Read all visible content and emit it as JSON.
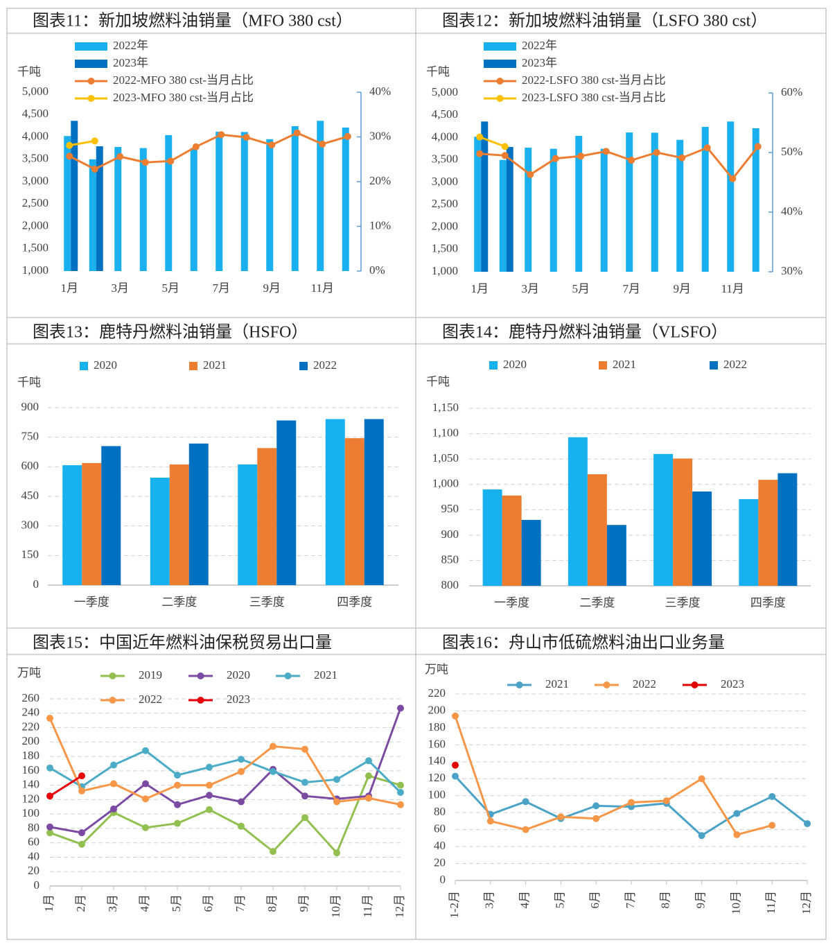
{
  "chart_data": [
    {
      "type": "combo",
      "title": "图表11：新加坡燃料油销量（MFO 380 cst）",
      "y_label": "千吨",
      "categories": [
        "1月",
        null,
        "3月",
        null,
        "5月",
        null,
        "7月",
        null,
        "9月",
        null,
        "11月",
        null
      ],
      "series": [
        {
          "name": "2022年",
          "color": "#1ab0ef",
          "values": [
            4020,
            3500,
            3775,
            3750,
            4040,
            3750,
            4115,
            4110,
            3950,
            4240,
            4360,
            4210
          ]
        },
        {
          "name": "2023年",
          "color": "#0070c0",
          "values": [
            4360,
            3790,
            null,
            null,
            null,
            null,
            null,
            null,
            null,
            null,
            null,
            null
          ]
        },
        {
          "name": "2022-MFO 380 cst-当月占比",
          "color": "#ed7d31",
          "axis": "y2",
          "values": [
            25.7,
            22.8,
            25.6,
            24.3,
            24.6,
            27.8,
            30.5,
            29.9,
            28.2,
            30.9,
            28.4,
            30.1
          ]
        },
        {
          "name": "2023-MFO 380 cst-当月占比",
          "color": "#ffc000",
          "axis": "y2",
          "values": [
            28.1,
            29.1,
            null,
            null,
            null,
            null,
            null,
            null,
            null,
            null,
            null,
            null
          ]
        }
      ],
      "ylim": [
        1000,
        5000
      ],
      "yticks": [
        {
          "value": 1000,
          "label": "1,000"
        },
        {
          "value": 1500,
          "label": "1,500"
        },
        {
          "value": 2000,
          "label": "2,000"
        },
        {
          "value": 2500,
          "label": "2,500"
        },
        {
          "value": 3000,
          "label": "3,000"
        },
        {
          "value": 3500,
          "label": "3,500"
        },
        {
          "value": 4000,
          "label": "4,000"
        },
        {
          "value": 4500,
          "label": "4,500"
        },
        {
          "value": 5000,
          "label": "5,000"
        }
      ],
      "y2lim": [
        0,
        40
      ],
      "y2ticks": [
        {
          "value": 0,
          "label": "0%"
        },
        {
          "value": 10,
          "label": "10%"
        },
        {
          "value": 20,
          "label": "20%"
        },
        {
          "value": 30,
          "label": "30%"
        },
        {
          "value": 40,
          "label": "40%"
        }
      ],
      "grid": false
    },
    {
      "type": "combo",
      "title": "图表12：新加坡燃料油销量（LSFO 380 cst）",
      "y_label": "千吨",
      "categories": [
        "1月",
        null,
        "3月",
        null,
        "5月",
        null,
        "7月",
        null,
        "9月",
        null,
        "11月",
        null
      ],
      "series": [
        {
          "name": "2022年",
          "color": "#1ab0ef",
          "values": [
            4020,
            3500,
            3775,
            3750,
            4040,
            3750,
            4115,
            4110,
            3950,
            4240,
            4360,
            4210
          ]
        },
        {
          "name": "2023年",
          "color": "#0070c0",
          "values": [
            4360,
            3790,
            null,
            null,
            null,
            null,
            null,
            null,
            null,
            null,
            null,
            null
          ]
        },
        {
          "name": "2022-LSFO 380 cst-当月占比",
          "color": "#ed7d31",
          "axis": "y2",
          "values": [
            49.8,
            49.5,
            46.3,
            49.0,
            49.4,
            50.2,
            48.7,
            50.0,
            49.1,
            50.8,
            45.6,
            51.0
          ]
        },
        {
          "name": "2023-LSFO 380 cst-当月占比",
          "color": "#ffc000",
          "axis": "y2",
          "values": [
            52.6,
            51.0,
            null,
            null,
            null,
            null,
            null,
            null,
            null,
            null,
            null,
            null
          ]
        }
      ],
      "ylim": [
        1000,
        5000
      ],
      "yticks": [
        {
          "value": 1000,
          "label": "1,000"
        },
        {
          "value": 1500,
          "label": "1,500"
        },
        {
          "value": 2000,
          "label": "2,000"
        },
        {
          "value": 2500,
          "label": "2,500"
        },
        {
          "value": 3000,
          "label": "3,000"
        },
        {
          "value": 3500,
          "label": "3,500"
        },
        {
          "value": 4000,
          "label": "4,000"
        },
        {
          "value": 4500,
          "label": "4,500"
        },
        {
          "value": 5000,
          "label": "5,000"
        }
      ],
      "y2lim": [
        30,
        60
      ],
      "y2ticks": [
        {
          "value": 30,
          "label": "30%"
        },
        {
          "value": 40,
          "label": "40%"
        },
        {
          "value": 50,
          "label": "50%"
        },
        {
          "value": 60,
          "label": "60%"
        }
      ],
      "grid": false
    },
    {
      "type": "bar",
      "title": "图表13：鹿特丹燃料油销量（HSFO）",
      "y_label": "千吨",
      "categories": [
        "一季度",
        "二季度",
        "三季度",
        "四季度"
      ],
      "series": [
        {
          "name": "2020",
          "color": "#17b1f0",
          "values": [
            608,
            545,
            612,
            842
          ]
        },
        {
          "name": "2021",
          "color": "#ed7d31",
          "values": [
            619,
            612,
            695,
            745
          ]
        },
        {
          "name": "2022",
          "color": "#0070c0",
          "values": [
            705,
            718,
            835,
            842
          ]
        }
      ],
      "ylim": [
        0,
        900
      ],
      "yticks": [
        0,
        150,
        300,
        450,
        600,
        750,
        900
      ],
      "grid": true
    },
    {
      "type": "bar",
      "title": "图表14：鹿特丹燃料油销量（VLSFO）",
      "y_label": "千吨",
      "categories": [
        "一季度",
        "二季度",
        "三季度",
        "四季度"
      ],
      "series": [
        {
          "name": "2020",
          "color": "#17b1f0",
          "values": [
            990,
            1093,
            1060,
            971
          ]
        },
        {
          "name": "2021",
          "color": "#ed7d31",
          "values": [
            978,
            1020,
            1051,
            1009
          ]
        },
        {
          "name": "2022",
          "color": "#0070c0",
          "values": [
            930,
            920,
            986,
            1022
          ]
        }
      ],
      "ylim": [
        800,
        1150
      ],
      "yticks": [
        800,
        850,
        900,
        950,
        {
          "value": 1000,
          "label": "1,000"
        },
        {
          "value": 1050,
          "label": "1,050"
        },
        {
          "value": 1100,
          "label": "1,100"
        },
        {
          "value": 1150,
          "label": "1,150"
        }
      ],
      "grid": true
    },
    {
      "type": "line",
      "title": "图表15：中国近年燃料油保税贸易出口量",
      "y_label": "万吨",
      "categories": [
        "1月",
        "2月",
        "3月",
        "4月",
        "5月",
        "6月",
        "7月",
        "8月",
        "9月",
        "10月",
        "11月",
        "12月"
      ],
      "series": [
        {
          "name": "2019",
          "color": "#92c050",
          "values": [
            74,
            58,
            102,
            81,
            87,
            106,
            83,
            48,
            95,
            46,
            153,
            140
          ]
        },
        {
          "name": "2020",
          "color": "#7b4aa3",
          "values": [
            82,
            74,
            107,
            142,
            113,
            126,
            117,
            162,
            125,
            121,
            125,
            247
          ]
        },
        {
          "name": "2021",
          "color": "#4aacc6",
          "values": [
            164,
            138,
            168,
            188,
            154,
            165,
            176,
            159,
            144,
            148,
            174,
            130
          ]
        },
        {
          "name": "2022",
          "color": "#f79646",
          "values": [
            233,
            132,
            142,
            121,
            140,
            140,
            159,
            194,
            190,
            117,
            122,
            113
          ]
        },
        {
          "name": "2023",
          "color": "#e8000b",
          "values": [
            125,
            153,
            null,
            null,
            null,
            null,
            null,
            null,
            null,
            null,
            null,
            null
          ]
        }
      ],
      "ylim": [
        0,
        260
      ],
      "yticks": [
        0,
        20,
        40,
        60,
        80,
        100,
        120,
        140,
        160,
        180,
        200,
        220,
        240,
        260
      ],
      "grid": true
    },
    {
      "type": "line",
      "title": "图表16：舟山市低硫燃料油出口业务量",
      "y_label": "万吨",
      "categories": [
        "1-2月",
        "3月",
        "4月",
        "5月",
        "6月",
        "7月",
        "8月",
        "9月",
        "10月",
        "11月",
        "12月"
      ],
      "series": [
        {
          "name": "2021",
          "color": "#4aa3c6",
          "values": [
            123,
            78,
            93,
            73,
            88,
            87,
            91,
            53,
            79,
            99,
            67
          ]
        },
        {
          "name": "2022",
          "color": "#f79646",
          "values": [
            194,
            70,
            60,
            75,
            73,
            92,
            94,
            120,
            54,
            65,
            null
          ]
        },
        {
          "name": "2023",
          "color": "#e00000",
          "values": [
            136,
            null,
            null,
            null,
            null,
            null,
            null,
            null,
            null,
            null,
            null
          ]
        }
      ],
      "ylim": [
        0,
        220
      ],
      "yticks": [
        0,
        20,
        40,
        60,
        80,
        100,
        120,
        140,
        160,
        180,
        200,
        220
      ],
      "grid": true
    }
  ]
}
